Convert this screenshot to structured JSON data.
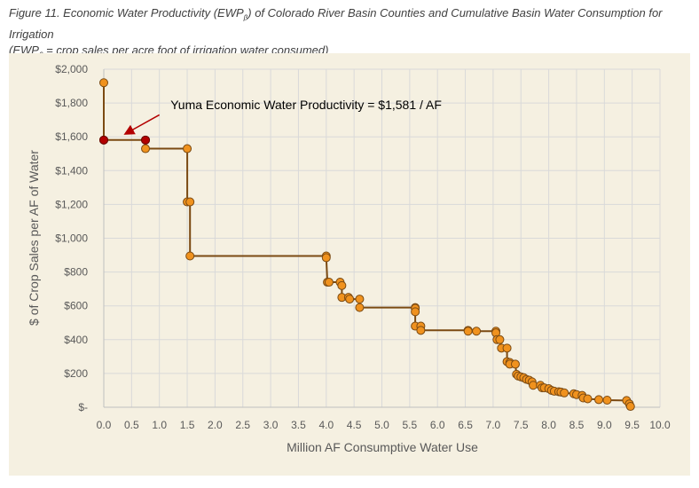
{
  "caption": {
    "line1_pre": "Figure 11. Economic Water Productivity (EWP",
    "line1_sub": "β",
    "line1_post": ") of Colorado River Basin Counties and Cumulative Basin Water Consumption for Irrigation",
    "line2_pre": "(EWP",
    "line2_sub": "β",
    "line2_post": " = crop sales per acre foot of irrigation water consumed)"
  },
  "chart_data": {
    "type": "line",
    "step": true,
    "xlabel": "Million AF Consumptive Water Use",
    "ylabel": "$ of Crop Sales per AF of Water",
    "xlim": [
      0,
      10
    ],
    "ylim": [
      0,
      2000
    ],
    "x_ticks": [
      0,
      0.5,
      1,
      1.5,
      2,
      2.5,
      3,
      3.5,
      4,
      4.5,
      5,
      5.5,
      6,
      6.5,
      7,
      7.5,
      8,
      8.5,
      9,
      9.5,
      10
    ],
    "x_tick_labels": [
      "0.0",
      "0.5",
      "1.0",
      "1.5",
      "2.0",
      "2.5",
      "3.0",
      "3.5",
      "4.0",
      "4.5",
      "5.0",
      "5.5",
      "6.0",
      "6.5",
      "7.0",
      "7.5",
      "8.0",
      "8.5",
      "9.0",
      "9.5",
      "10.0"
    ],
    "y_ticks": [
      0,
      200,
      400,
      600,
      800,
      1000,
      1200,
      1400,
      1600,
      1800,
      2000
    ],
    "y_tick_labels": [
      "$-",
      "$200",
      "$400",
      "$600",
      "$800",
      "$1,000",
      "$1,200",
      "$1,400",
      "$1,600",
      "$1,800",
      "$2,000"
    ],
    "grid": true,
    "series": [
      {
        "color": "#7b4a12",
        "marker_color": "#f0921e",
        "points": [
          [
            0.0,
            1920
          ],
          [
            0.0,
            1581
          ],
          [
            0.75,
            1581
          ],
          [
            0.75,
            1530
          ],
          [
            1.5,
            1530
          ],
          [
            1.5,
            1215
          ],
          [
            1.55,
            1215
          ],
          [
            1.55,
            895
          ],
          [
            4.0,
            895
          ],
          [
            4.0,
            885
          ],
          [
            4.02,
            740
          ],
          [
            4.05,
            740
          ],
          [
            4.25,
            740
          ],
          [
            4.28,
            720
          ],
          [
            4.28,
            650
          ],
          [
            4.4,
            650
          ],
          [
            4.42,
            640
          ],
          [
            4.6,
            640
          ],
          [
            4.6,
            590
          ],
          [
            5.6,
            590
          ],
          [
            5.6,
            585
          ],
          [
            5.6,
            565
          ],
          [
            5.6,
            480
          ],
          [
            5.7,
            480
          ],
          [
            5.7,
            455
          ],
          [
            6.55,
            455
          ],
          [
            6.55,
            450
          ],
          [
            6.7,
            450
          ],
          [
            7.05,
            450
          ],
          [
            7.05,
            440
          ],
          [
            7.07,
            400
          ],
          [
            7.12,
            400
          ],
          [
            7.15,
            350
          ],
          [
            7.25,
            350
          ],
          [
            7.25,
            270
          ],
          [
            7.3,
            265
          ],
          [
            7.3,
            255
          ],
          [
            7.4,
            255
          ],
          [
            7.42,
            195
          ],
          [
            7.45,
            185
          ],
          [
            7.5,
            180
          ],
          [
            7.55,
            175
          ],
          [
            7.6,
            165
          ],
          [
            7.65,
            160
          ],
          [
            7.7,
            150
          ],
          [
            7.72,
            130
          ],
          [
            7.85,
            130
          ],
          [
            7.88,
            115
          ],
          [
            7.92,
            115
          ],
          [
            8.0,
            110
          ],
          [
            8.05,
            100
          ],
          [
            8.1,
            95
          ],
          [
            8.18,
            92
          ],
          [
            8.22,
            90
          ],
          [
            8.28,
            85
          ],
          [
            8.45,
            80
          ],
          [
            8.5,
            75
          ],
          [
            8.6,
            70
          ],
          [
            8.62,
            55
          ],
          [
            8.7,
            50
          ],
          [
            8.9,
            45
          ],
          [
            9.05,
            42
          ],
          [
            9.4,
            40
          ],
          [
            9.45,
            20
          ],
          [
            9.47,
            5
          ]
        ]
      }
    ],
    "highlight_points": [
      [
        0.0,
        1581
      ],
      [
        0.75,
        1581
      ]
    ],
    "highlight_color": "#b30000",
    "annotations": [
      {
        "text": "Yuma Economic Water Productivity = $1,581 / AF",
        "x": 1.2,
        "y": 1790,
        "arrow_from": [
          1.0,
          1730
        ],
        "arrow_to": [
          0.4,
          1620
        ]
      }
    ]
  }
}
